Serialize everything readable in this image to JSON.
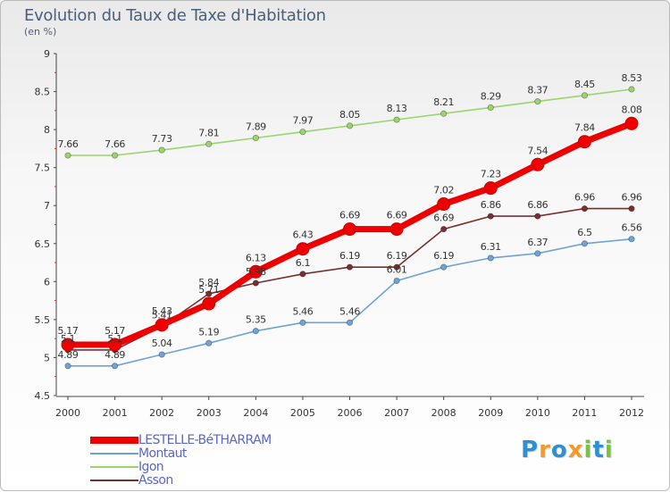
{
  "header": {
    "title": "Evolution du Taux de Taxe d'Habitation",
    "subtitle": "(en %)"
  },
  "logo": {
    "text": "Proxiti",
    "letters": [
      "P",
      "r",
      "o",
      "x",
      "i",
      "t",
      "i"
    ],
    "colors": [
      "#2f8fd0",
      "#f39a2b",
      "#2f8fd0",
      "#f39a2b",
      "#7cc242",
      "#2f8fd0",
      "#7cc242"
    ]
  },
  "chart_data": {
    "type": "line",
    "title": "Evolution du Taux de Taxe d'Habitation",
    "subtitle": "(en %)",
    "xlabel": "",
    "ylabel": "",
    "x": [
      "2000",
      "2001",
      "2002",
      "2003",
      "2004",
      "2005",
      "2006",
      "2007",
      "2008",
      "2009",
      "2010",
      "2011",
      "2012"
    ],
    "ylim": [
      4.5,
      9
    ],
    "yticks": [
      "4.5",
      "5",
      "5.5",
      "6",
      "6.5",
      "7",
      "7.5",
      "8",
      "8.5",
      "9"
    ],
    "grid": false,
    "legend_position": "bottom-left",
    "series": [
      {
        "name": "LESTELLE-BéTHARRAM",
        "color": "#ee0000",
        "emphasis": true,
        "values": [
          5.17,
          5.17,
          5.43,
          5.71,
          6.13,
          6.43,
          6.69,
          6.69,
          7.02,
          7.23,
          7.54,
          7.84,
          8.08
        ],
        "labels": [
          "5.17",
          "5.17",
          "5.43",
          "5.71",
          "6.13",
          "6.43",
          "6.69",
          "6.69",
          "7.02",
          "7.23",
          "7.54",
          "7.84",
          "8.08"
        ]
      },
      {
        "name": "Montaut",
        "color": "#6ea3d6",
        "values": [
          4.89,
          4.89,
          5.04,
          5.19,
          5.35,
          5.46,
          5.46,
          6.01,
          6.19,
          6.31,
          6.37,
          6.5,
          6.56
        ],
        "labels": [
          "4.89",
          "4.89",
          "5.04",
          "5.19",
          "5.35",
          "5.46",
          "5.46",
          "6.01",
          "6.19",
          "6.31",
          "6.37",
          "6.5",
          "6.56"
        ]
      },
      {
        "name": "Igon",
        "color": "#9bd46c",
        "values": [
          7.66,
          7.66,
          7.73,
          7.81,
          7.89,
          7.97,
          8.05,
          8.13,
          8.21,
          8.29,
          8.37,
          8.45,
          8.53
        ],
        "labels": [
          "7.66",
          "7.66",
          "7.73",
          "7.81",
          "7.89",
          "7.97",
          "8.05",
          "8.13",
          "8.21",
          "8.29",
          "8.37",
          "8.45",
          "8.53"
        ]
      },
      {
        "name": "Asson",
        "color": "#7a2f2f",
        "values": [
          5.1,
          5.1,
          5.41,
          5.84,
          5.98,
          6.1,
          6.19,
          6.19,
          6.69,
          6.86,
          6.86,
          6.96,
          6.96
        ],
        "labels": [
          "5.1",
          "5.1",
          "5.41",
          "5.84",
          "5.98",
          "6.1",
          "6.19",
          "6.19",
          "6.69",
          "6.86",
          "6.86",
          "6.96",
          "6.96"
        ]
      }
    ]
  }
}
